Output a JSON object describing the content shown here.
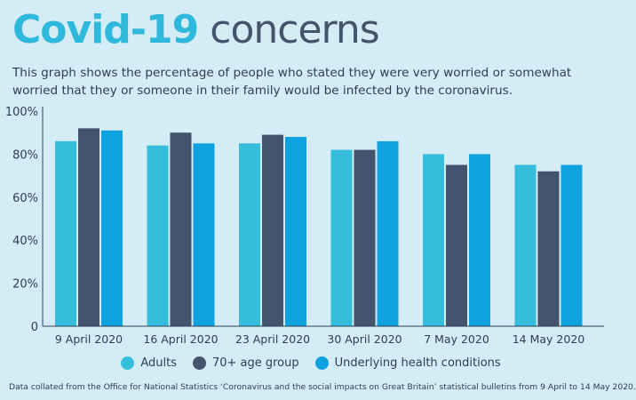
{
  "header": {
    "title_part1": "Covid-19",
    "title_part2": "concerns",
    "subtitle": "This graph shows the percentage of people who stated they were very worried or somewhat worried that they or someone in their family would be infected by the coronavirus."
  },
  "colors": {
    "adults": "#35bddc",
    "age70": "#44546f",
    "underlying": "#0fa2e0",
    "background": "#d4ecf6"
  },
  "chart_data": {
    "type": "bar",
    "categories": [
      "9 April 2020",
      "16 April 2020",
      "23 April 2020",
      "30 April 2020",
      "7 May 2020",
      "14 May 2020"
    ],
    "series": [
      {
        "name": "Adults",
        "values": [
          86,
          84,
          85,
          82,
          80,
          75
        ]
      },
      {
        "name": "70+ age group",
        "values": [
          92,
          90,
          89,
          82,
          75,
          72
        ]
      },
      {
        "name": "Underlying health conditions",
        "values": [
          91,
          85,
          88,
          86,
          80,
          75
        ]
      }
    ],
    "ylim": [
      0,
      100
    ],
    "yticks": [
      0,
      20,
      40,
      60,
      80,
      100
    ],
    "ytick_labels": [
      "0",
      "20%",
      "40%",
      "60%",
      "80%",
      "100%"
    ],
    "grid": false,
    "legend": "bottom-center"
  },
  "source": "Data collated from the Office for National Statistics ‘Coronavirus and the social impacts on Great Britain’ statistical bulletins from 9 April to 14 May 2020."
}
